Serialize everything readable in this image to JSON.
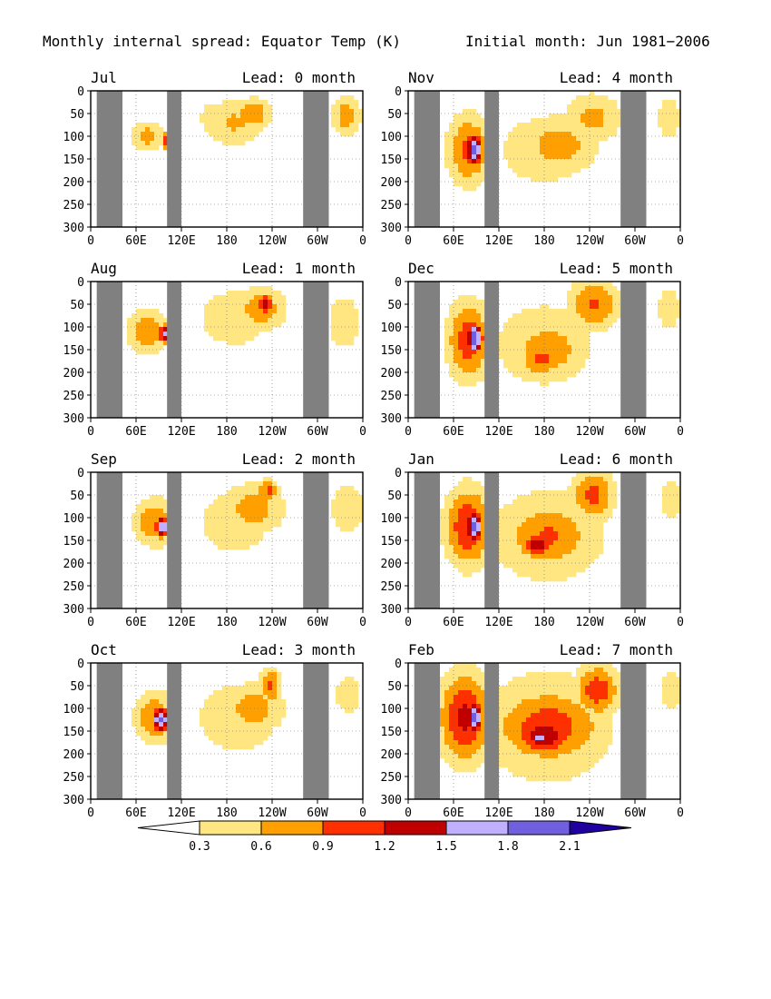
{
  "header": {
    "title": "Monthly internal spread: Equator Temp (K)",
    "initial_month": "Initial month: Jun 1981−2006"
  },
  "chart_data": {
    "type": "heatmap",
    "units": "K",
    "x_axis": {
      "ticks": [
        "0",
        "60E",
        "120E",
        "180",
        "120W",
        "60W",
        "0"
      ],
      "range_deg_east": [
        0,
        360
      ]
    },
    "y_axis": {
      "ticks": [
        "0",
        "50",
        "100",
        "150",
        "200",
        "250",
        "300"
      ],
      "range": [
        0,
        300
      ],
      "inverted": true
    },
    "grid": true,
    "land_mask_color": "#808080",
    "land_masks_deg_east": [
      [
        8,
        42
      ],
      [
        101,
        120
      ],
      [
        281,
        315
      ]
    ],
    "colorbar": {
      "levels": [
        "0.3",
        "0.6",
        "0.9",
        "1.2",
        "1.5",
        "1.8",
        "2.1"
      ],
      "colors": [
        "#ffffff",
        "#ffe680",
        "#ffa000",
        "#ff3000",
        "#c00000",
        "#c0b0ff",
        "#7060e0",
        "#2000a0"
      ],
      "extend": "both"
    },
    "panels": [
      {
        "month": "Jul",
        "lead_label": "Lead: 0 month",
        "lead": 0,
        "blobs": [
          {
            "lon": 75,
            "depth": 100,
            "rl": 24,
            "rd": 35,
            "v": 0.75
          },
          {
            "lon": 100,
            "depth": 110,
            "rl": 8,
            "rd": 18,
            "v": 1.25
          },
          {
            "lon": 190,
            "depth": 70,
            "rl": 45,
            "rd": 55,
            "v": 0.65
          },
          {
            "lon": 215,
            "depth": 50,
            "rl": 25,
            "rd": 35,
            "v": 0.9
          },
          {
            "lon": 158,
            "depth": 60,
            "rl": 18,
            "rd": 55,
            "v": 0.45
          },
          {
            "lon": 338,
            "depth": 55,
            "rl": 20,
            "rd": 45,
            "v": 0.8
          }
        ]
      },
      {
        "month": "Aug",
        "lead_label": "Lead: 1 month",
        "lead": 1,
        "blobs": [
          {
            "lon": 75,
            "depth": 110,
            "rl": 28,
            "rd": 50,
            "v": 0.9
          },
          {
            "lon": 98,
            "depth": 115,
            "rl": 8,
            "rd": 22,
            "v": 1.65
          },
          {
            "lon": 190,
            "depth": 80,
            "rl": 60,
            "rd": 80,
            "v": 0.5
          },
          {
            "lon": 225,
            "depth": 60,
            "rl": 35,
            "rd": 50,
            "v": 0.85
          },
          {
            "lon": 230,
            "depth": 50,
            "rl": 15,
            "rd": 25,
            "v": 1.3
          },
          {
            "lon": 335,
            "depth": 90,
            "rl": 25,
            "rd": 70,
            "v": 0.55
          }
        ]
      },
      {
        "month": "Sep",
        "lead_label": "Lead: 2 month",
        "lead": 2,
        "blobs": [
          {
            "lon": 85,
            "depth": 110,
            "rl": 28,
            "rd": 55,
            "v": 0.9
          },
          {
            "lon": 95,
            "depth": 120,
            "rl": 10,
            "rd": 25,
            "v": 1.9
          },
          {
            "lon": 190,
            "depth": 110,
            "rl": 60,
            "rd": 90,
            "v": 0.5
          },
          {
            "lon": 215,
            "depth": 80,
            "rl": 45,
            "rd": 60,
            "v": 0.75
          },
          {
            "lon": 235,
            "depth": 40,
            "rl": 15,
            "rd": 25,
            "v": 1.0
          },
          {
            "lon": 340,
            "depth": 80,
            "rl": 25,
            "rd": 60,
            "v": 0.6
          }
        ]
      },
      {
        "month": "Oct",
        "lead_label": "Lead: 3 month",
        "lead": 3,
        "blobs": [
          {
            "lon": 85,
            "depth": 120,
            "rl": 28,
            "rd": 60,
            "v": 0.9
          },
          {
            "lon": 93,
            "depth": 125,
            "rl": 12,
            "rd": 30,
            "v": 2.0
          },
          {
            "lon": 195,
            "depth": 120,
            "rl": 70,
            "rd": 100,
            "v": 0.5
          },
          {
            "lon": 215,
            "depth": 100,
            "rl": 45,
            "rd": 60,
            "v": 0.75
          },
          {
            "lon": 238,
            "depth": 50,
            "rl": 15,
            "rd": 40,
            "v": 1.0
          },
          {
            "lon": 340,
            "depth": 70,
            "rl": 20,
            "rd": 50,
            "v": 0.55
          }
        ]
      },
      {
        "month": "Nov",
        "lead_label": "Lead: 4 month",
        "lead": 4,
        "blobs": [
          {
            "lon": 80,
            "depth": 130,
            "rl": 30,
            "rd": 80,
            "v": 1.0
          },
          {
            "lon": 88,
            "depth": 130,
            "rl": 12,
            "rd": 35,
            "v": 2.1
          },
          {
            "lon": 180,
            "depth": 130,
            "rl": 70,
            "rd": 90,
            "v": 0.55
          },
          {
            "lon": 200,
            "depth": 120,
            "rl": 55,
            "rd": 70,
            "v": 0.75
          },
          {
            "lon": 245,
            "depth": 60,
            "rl": 40,
            "rd": 60,
            "v": 0.7
          },
          {
            "lon": 345,
            "depth": 60,
            "rl": 20,
            "rd": 60,
            "v": 0.5
          }
        ]
      },
      {
        "month": "Dec",
        "lead_label": "Lead: 5 month",
        "lead": 5,
        "blobs": [
          {
            "lon": 80,
            "depth": 130,
            "rl": 30,
            "rd": 90,
            "v": 1.1
          },
          {
            "lon": 88,
            "depth": 125,
            "rl": 12,
            "rd": 35,
            "v": 2.1
          },
          {
            "lon": 180,
            "depth": 140,
            "rl": 80,
            "rd": 110,
            "v": 0.55
          },
          {
            "lon": 185,
            "depth": 150,
            "rl": 55,
            "rd": 70,
            "v": 0.8
          },
          {
            "lon": 175,
            "depth": 170,
            "rl": 30,
            "rd": 40,
            "v": 1.0
          },
          {
            "lon": 245,
            "depth": 50,
            "rl": 35,
            "rd": 60,
            "v": 0.95
          },
          {
            "lon": 345,
            "depth": 60,
            "rl": 20,
            "rd": 60,
            "v": 0.5
          }
        ]
      },
      {
        "month": "Jan",
        "lead_label": "Lead: 6 month",
        "lead": 6,
        "blobs": [
          {
            "lon": 80,
            "depth": 120,
            "rl": 32,
            "rd": 90,
            "v": 1.2
          },
          {
            "lon": 88,
            "depth": 120,
            "rl": 12,
            "rd": 35,
            "v": 2.1
          },
          {
            "lon": 185,
            "depth": 140,
            "rl": 90,
            "rd": 120,
            "v": 0.6
          },
          {
            "lon": 185,
            "depth": 140,
            "rl": 60,
            "rd": 75,
            "v": 0.95
          },
          {
            "lon": 170,
            "depth": 160,
            "rl": 25,
            "rd": 30,
            "v": 1.35
          },
          {
            "lon": 245,
            "depth": 50,
            "rl": 30,
            "rd": 60,
            "v": 1.0
          },
          {
            "lon": 348,
            "depth": 60,
            "rl": 20,
            "rd": 60,
            "v": 0.5
          }
        ]
      },
      {
        "month": "Feb",
        "lead_label": "Lead: 7 month",
        "lead": 7,
        "blobs": [
          {
            "lon": 75,
            "depth": 120,
            "rl": 35,
            "rd": 100,
            "v": 1.3
          },
          {
            "lon": 88,
            "depth": 120,
            "rl": 12,
            "rd": 35,
            "v": 2.1
          },
          {
            "lon": 185,
            "depth": 140,
            "rl": 100,
            "rd": 140,
            "v": 0.65
          },
          {
            "lon": 185,
            "depth": 140,
            "rl": 75,
            "rd": 85,
            "v": 1.1
          },
          {
            "lon": 180,
            "depth": 160,
            "rl": 45,
            "rd": 45,
            "v": 1.4
          },
          {
            "lon": 175,
            "depth": 165,
            "rl": 20,
            "rd": 20,
            "v": 1.7
          },
          {
            "lon": 250,
            "depth": 60,
            "rl": 30,
            "rd": 60,
            "v": 1.1
          },
          {
            "lon": 348,
            "depth": 60,
            "rl": 20,
            "rd": 60,
            "v": 0.5
          }
        ]
      }
    ]
  }
}
